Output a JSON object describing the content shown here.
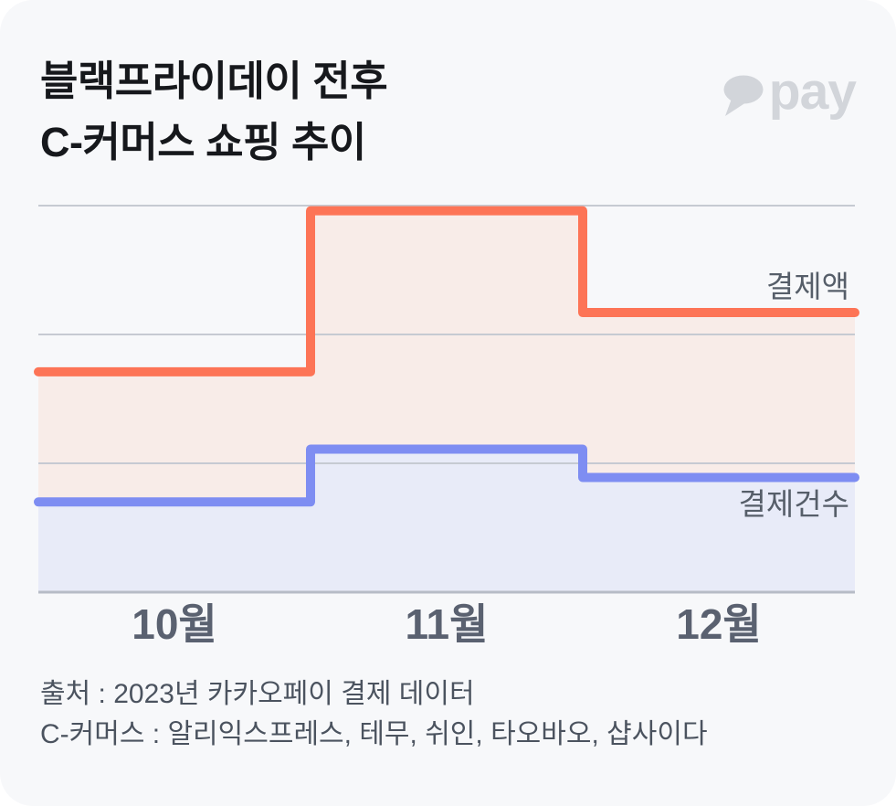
{
  "header": {
    "title_line1": "블랙프라이데이 전후",
    "title_line2": "C-커머스 쇼핑 추이",
    "logo_text": "pay",
    "logo_icon": "kakaotalk-speech-bubble-icon",
    "logo_color": "#d2d5da"
  },
  "chart_data": {
    "type": "area",
    "subtype": "step",
    "title": "블랙프라이데이 전후 C-커머스 쇼핑 추이",
    "categories": [
      "10월",
      "11월",
      "12월"
    ],
    "series": [
      {
        "name": "결제액",
        "values": [
          1.71,
          2.96,
          2.17
        ],
        "line_color": "#fd7456",
        "fill_color": "#f8ece8"
      },
      {
        "name": "결제건수",
        "values": [
          0.7,
          1.11,
          0.89
        ],
        "line_color": "#7e8df2",
        "fill_color": "#e8ebf8"
      }
    ],
    "xlabel": "",
    "ylabel": "",
    "ylim": [
      0,
      3
    ],
    "y_axis_labels": false,
    "gridline_values": [
      1,
      2,
      3
    ],
    "grid": true,
    "gridline_color": "#c6cad2",
    "axis_color": "#b7bcc6",
    "legend_position": "inline-right"
  },
  "footer": {
    "source": "출처 : 2023년 카카오페이 결제 데이터",
    "note": "C-커머스 : 알리익스프레스, 테무, 쉬인, 타오바오, 샵사이다"
  },
  "colors": {
    "card_background": "#f7f8fa",
    "page_background": "#ffffff",
    "title_text": "#16181c",
    "axis_label_text": "#5a6170",
    "legend_text": "#565e69",
    "footer_text": "#4b535f"
  }
}
